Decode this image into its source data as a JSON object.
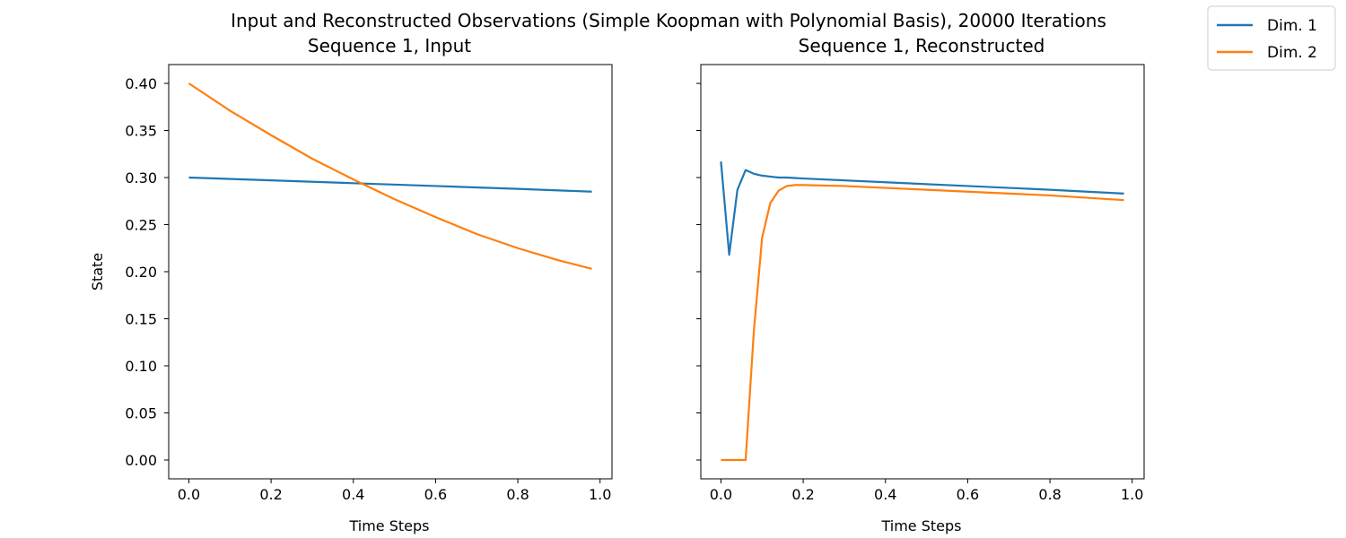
{
  "figure": {
    "suptitle": "Input and Reconstructed Observations (Simple Koopman with Polynomial Basis), 20000 Iterations"
  },
  "legend": {
    "placement": "top-right",
    "entries": [
      {
        "label": "Dim. 1",
        "color": "#1f77b4"
      },
      {
        "label": "Dim. 2",
        "color": "#ff7f0e"
      }
    ]
  },
  "chart_data": [
    {
      "type": "line",
      "title": "Sequence 1, Input",
      "xlabel": "Time Steps",
      "ylabel": "State",
      "xlim": [
        -0.049,
        1.029
      ],
      "ylim": [
        -0.02,
        0.42
      ],
      "xticks": [
        "0.0",
        "0.2",
        "0.4",
        "0.6",
        "0.8",
        "1.0"
      ],
      "yticks": [
        "0.00",
        "0.05",
        "0.10",
        "0.15",
        "0.20",
        "0.25",
        "0.30",
        "0.35",
        "0.40"
      ],
      "grid": false,
      "series": [
        {
          "name": "Dim. 1",
          "color": "#1f77b4",
          "x": [
            0.0,
            0.2,
            0.4,
            0.6,
            0.8,
            0.98
          ],
          "y": [
            0.3,
            0.297,
            0.294,
            0.291,
            0.288,
            0.285
          ]
        },
        {
          "name": "Dim. 2",
          "color": "#ff7f0e",
          "x": [
            0.0,
            0.1,
            0.2,
            0.3,
            0.4,
            0.5,
            0.6,
            0.7,
            0.8,
            0.9,
            0.98
          ],
          "y": [
            0.4,
            0.371,
            0.345,
            0.32,
            0.298,
            0.277,
            0.258,
            0.24,
            0.225,
            0.212,
            0.203
          ]
        }
      ]
    },
    {
      "type": "line",
      "title": "Sequence 1, Reconstructed",
      "xlabel": "Time Steps",
      "ylabel": "",
      "xlim": [
        -0.049,
        1.029
      ],
      "ylim": [
        -0.02,
        0.42
      ],
      "xticks": [
        "0.0",
        "0.2",
        "0.4",
        "0.6",
        "0.8",
        "1.0"
      ],
      "yticks": [],
      "grid": false,
      "series": [
        {
          "name": "Dim. 1",
          "color": "#1f77b4",
          "x": [
            0.0,
            0.02,
            0.04,
            0.06,
            0.08,
            0.1,
            0.12,
            0.14,
            0.16,
            0.2,
            0.4,
            0.6,
            0.8,
            0.98
          ],
          "y": [
            0.317,
            0.218,
            0.287,
            0.308,
            0.304,
            0.302,
            0.301,
            0.3,
            0.3,
            0.299,
            0.295,
            0.291,
            0.287,
            0.283
          ]
        },
        {
          "name": "Dim. 2",
          "color": "#ff7f0e",
          "x": [
            0.0,
            0.02,
            0.04,
            0.06,
            0.08,
            0.1,
            0.12,
            0.14,
            0.16,
            0.18,
            0.2,
            0.3,
            0.4,
            0.6,
            0.8,
            0.98
          ],
          "y": [
            0.0,
            0.0,
            0.0,
            0.0,
            0.137,
            0.236,
            0.273,
            0.286,
            0.291,
            0.292,
            0.292,
            0.291,
            0.289,
            0.285,
            0.281,
            0.276
          ]
        }
      ]
    }
  ]
}
